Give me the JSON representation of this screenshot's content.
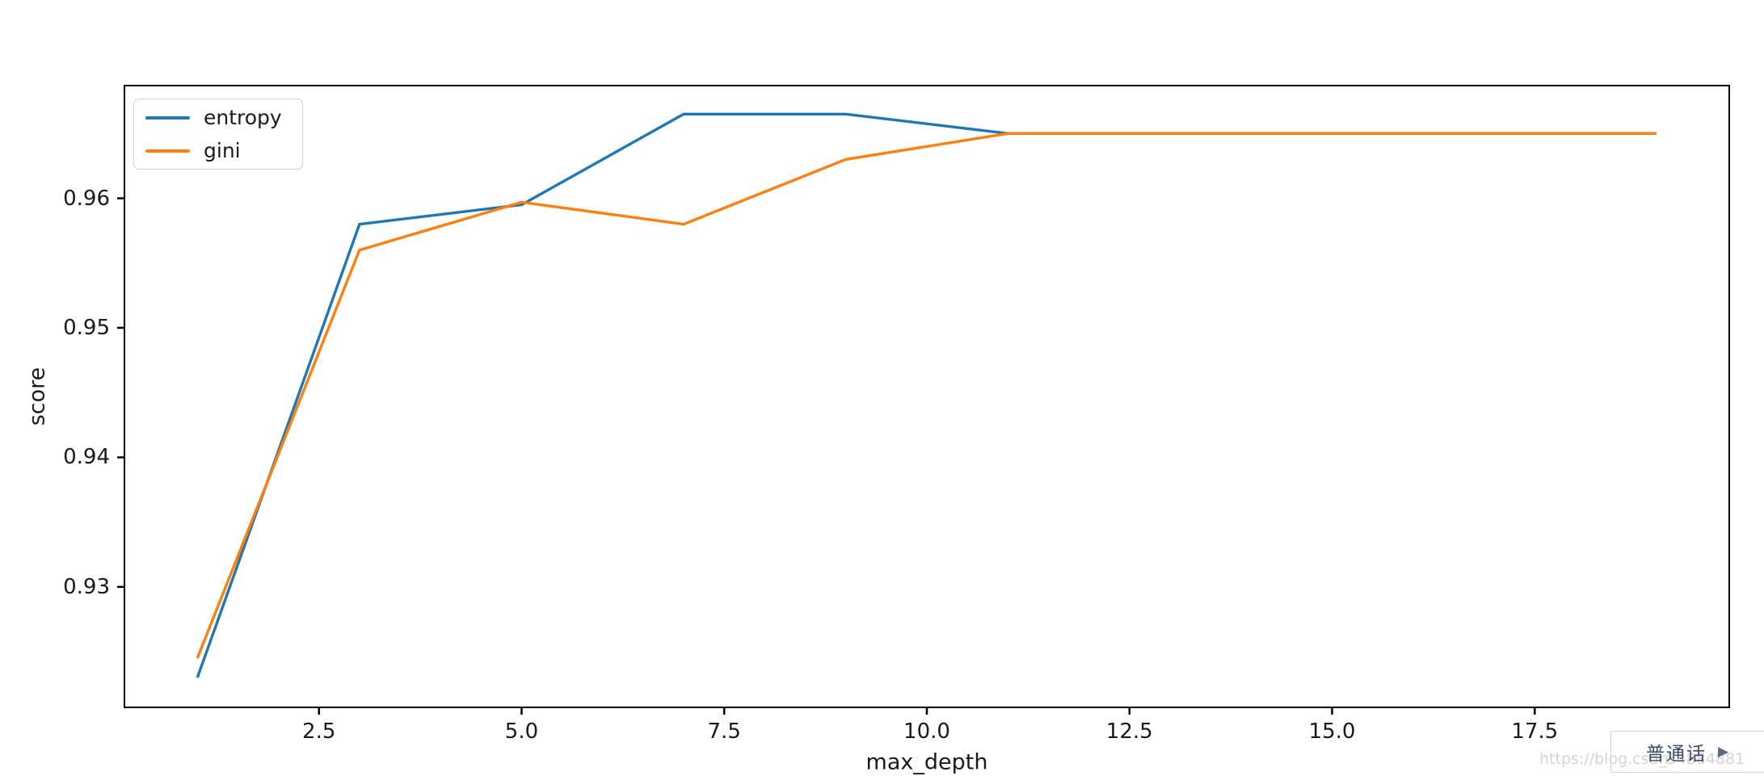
{
  "chart_data": {
    "type": "line",
    "x": [
      1,
      3,
      5,
      7,
      9,
      11,
      13,
      15,
      17,
      19
    ],
    "series": [
      {
        "name": "entropy",
        "color": "#1f77b4",
        "values": [
          0.923,
          0.958,
          0.9595,
          0.9665,
          0.9665,
          0.965,
          0.965,
          0.965,
          0.965,
          0.965
        ]
      },
      {
        "name": "gini",
        "color": "#ff7f0e",
        "values": [
          0.9245,
          0.956,
          0.9597,
          0.958,
          0.963,
          0.965,
          0.965,
          0.965,
          0.965,
          0.965
        ]
      }
    ],
    "title": "",
    "xlabel": "max_depth",
    "ylabel": "score",
    "xlim": [
      0.1,
      19.9
    ],
    "ylim": [
      0.9207,
      0.9687
    ],
    "xticks": {
      "values": [
        2.5,
        5,
        7.5,
        10,
        12.5,
        15,
        17.5
      ],
      "labels": [
        "2.5",
        "5.0",
        "7.5",
        "10.0",
        "12.5",
        "15.0",
        "17.5"
      ]
    },
    "yticks": {
      "values": [
        0.93,
        0.94,
        0.95,
        0.96
      ],
      "labels": [
        "0.93",
        "0.94",
        "0.95",
        "0.96"
      ]
    },
    "grid": false,
    "legend_position": "upper left",
    "axis_color": "#000000",
    "tick_text_color": "#1a1a1a",
    "line_width": 3.4
  },
  "legend": {
    "items": [
      {
        "label": "entropy",
        "color": "#1f77b4"
      },
      {
        "label": "gini",
        "color": "#ff7f0e"
      }
    ]
  },
  "watermark": {
    "prefix": "https://blog.csdn.",
    "suffix": "_54884881",
    "color": "#d9d2d2"
  },
  "popup": {
    "label": "普通话",
    "play_icon": "▶",
    "text_color": "#3a486b",
    "icon_color": "#5a6a8e",
    "border_color": "#ccd3e0"
  }
}
